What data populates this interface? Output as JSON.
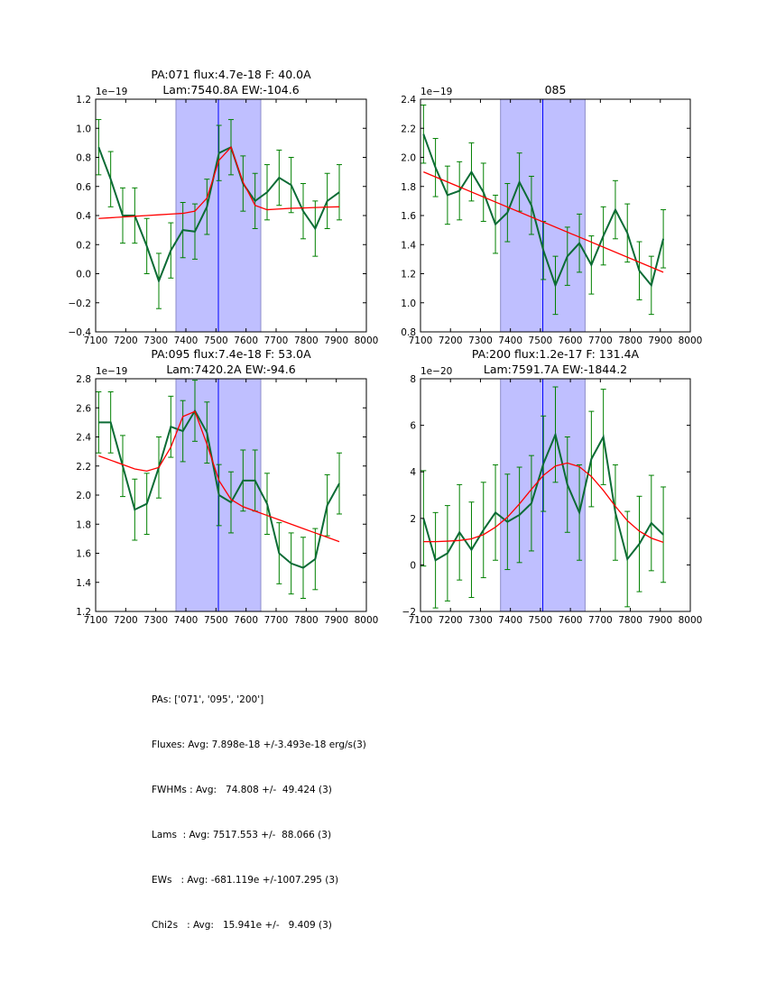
{
  "chart_data": [
    {
      "type": "line",
      "title_lines": [
        "PA:071 flux:4.7e-18 F: 40.0A",
        "Lam:7540.8A EW:-104.6"
      ],
      "offset_label": "1e−19",
      "xlim": [
        7100,
        8000
      ],
      "ylim": [
        -0.4,
        1.2
      ],
      "xticks": [
        7100,
        7200,
        7300,
        7400,
        7500,
        7600,
        7700,
        7800,
        7900,
        8000
      ],
      "yticks": [
        -0.4,
        -0.2,
        0.0,
        0.2,
        0.4,
        0.6,
        0.8,
        1.0,
        1.2
      ],
      "ytick_labels": [
        "−0.4",
        "−0.2",
        "0.0",
        "0.2",
        "0.4",
        "0.6",
        "0.8",
        "1.0",
        "1.2"
      ],
      "span": [
        7367,
        7649
      ],
      "vline": 7508,
      "x": [
        7110,
        7150,
        7190,
        7230,
        7270,
        7310,
        7350,
        7390,
        7430,
        7470,
        7510,
        7550,
        7590,
        7630,
        7670,
        7710,
        7750,
        7790,
        7830,
        7870,
        7910
      ],
      "series": [
        {
          "name": "data",
          "values": [
            0.87,
            0.65,
            0.4,
            0.4,
            0.19,
            -0.05,
            0.16,
            0.3,
            0.29,
            0.46,
            0.83,
            0.87,
            0.62,
            0.5,
            0.56,
            0.66,
            0.61,
            0.43,
            0.31,
            0.5,
            0.56
          ],
          "err": 0.19
        },
        {
          "name": "fit",
          "values": [
            0.38,
            0.385,
            0.39,
            0.395,
            0.4,
            0.405,
            0.41,
            0.415,
            0.43,
            0.52,
            0.78,
            0.87,
            0.63,
            0.47,
            0.44,
            0.445,
            0.45,
            0.452,
            0.455,
            0.458,
            0.46
          ]
        }
      ]
    },
    {
      "type": "line",
      "title_lines": [
        "085"
      ],
      "offset_label": "1e−19",
      "xlim": [
        7100,
        8000
      ],
      "ylim": [
        0.8,
        2.4
      ],
      "xticks": [
        7100,
        7200,
        7300,
        7400,
        7500,
        7600,
        7700,
        7800,
        7900,
        8000
      ],
      "yticks": [
        0.8,
        1.0,
        1.2,
        1.4,
        1.6,
        1.8,
        2.0,
        2.2,
        2.4
      ],
      "ytick_labels": [
        "0.8",
        "1.0",
        "1.2",
        "1.4",
        "1.6",
        "1.8",
        "2.0",
        "2.2",
        "2.4"
      ],
      "span": [
        7367,
        7649
      ],
      "vline": 7508,
      "x": [
        7110,
        7150,
        7190,
        7230,
        7270,
        7310,
        7350,
        7390,
        7430,
        7470,
        7510,
        7550,
        7590,
        7630,
        7670,
        7710,
        7750,
        7790,
        7830,
        7870,
        7910
      ],
      "series": [
        {
          "name": "data",
          "values": [
            2.16,
            1.93,
            1.74,
            1.77,
            1.9,
            1.76,
            1.54,
            1.62,
            1.83,
            1.67,
            1.36,
            1.12,
            1.32,
            1.41,
            1.26,
            1.46,
            1.64,
            1.48,
            1.22,
            1.12,
            1.44
          ],
          "err": 0.2
        },
        {
          "name": "fit",
          "values": [
            1.9,
            1.21
          ],
          "x": [
            7110,
            7910
          ]
        }
      ]
    },
    {
      "type": "line",
      "title_lines": [
        "PA:095 flux:7.4e-18 F: 53.0A",
        "Lam:7420.2A EW:-94.6"
      ],
      "offset_label": "1e−19",
      "xlim": [
        7100,
        8000
      ],
      "ylim": [
        1.2,
        2.8
      ],
      "xticks": [
        7100,
        7200,
        7300,
        7400,
        7500,
        7600,
        7700,
        7800,
        7900,
        8000
      ],
      "yticks": [
        1.2,
        1.4,
        1.6,
        1.8,
        2.0,
        2.2,
        2.4,
        2.6,
        2.8
      ],
      "ytick_labels": [
        "1.2",
        "1.4",
        "1.6",
        "1.8",
        "2.0",
        "2.2",
        "2.4",
        "2.6",
        "2.8"
      ],
      "span": [
        7367,
        7649
      ],
      "vline": 7508,
      "x": [
        7110,
        7150,
        7190,
        7230,
        7270,
        7310,
        7350,
        7390,
        7430,
        7470,
        7510,
        7550,
        7590,
        7630,
        7670,
        7710,
        7750,
        7790,
        7830,
        7870,
        7910
      ],
      "series": [
        {
          "name": "data",
          "values": [
            2.5,
            2.5,
            2.2,
            1.9,
            1.94,
            2.19,
            2.47,
            2.44,
            2.58,
            2.43,
            2.0,
            1.95,
            2.1,
            2.1,
            1.94,
            1.6,
            1.53,
            1.5,
            1.56,
            1.93,
            2.08
          ],
          "err": 0.21
        },
        {
          "name": "fit",
          "values": [
            2.27,
            2.24,
            2.21,
            2.18,
            2.165,
            2.19,
            2.33,
            2.54,
            2.575,
            2.35,
            2.1,
            1.97,
            1.92,
            1.89,
            1.86,
            1.83,
            1.8,
            1.77,
            1.74,
            1.71,
            1.68
          ]
        }
      ]
    },
    {
      "type": "line",
      "title_lines": [
        "PA:200 flux:1.2e-17 F: 131.4A",
        "Lam:7591.7A EW:-1844.2"
      ],
      "offset_label": "1e−20",
      "xlim": [
        7100,
        8000
      ],
      "ylim": [
        -2,
        8
      ],
      "xticks": [
        7100,
        7200,
        7300,
        7400,
        7500,
        7600,
        7700,
        7800,
        7900,
        8000
      ],
      "yticks": [
        -2,
        0,
        2,
        4,
        6,
        8
      ],
      "ytick_labels": [
        "−2",
        "0",
        "2",
        "4",
        "6",
        "8"
      ],
      "span": [
        7367,
        7649
      ],
      "vline": 7508,
      "x": [
        7110,
        7150,
        7190,
        7230,
        7270,
        7310,
        7350,
        7390,
        7430,
        7470,
        7510,
        7550,
        7590,
        7630,
        7670,
        7710,
        7750,
        7790,
        7830,
        7870,
        7910
      ],
      "series": [
        {
          "name": "data",
          "values": [
            2.0,
            0.2,
            0.5,
            1.4,
            0.65,
            1.5,
            2.25,
            1.85,
            2.15,
            2.65,
            4.35,
            5.6,
            3.45,
            2.25,
            4.55,
            5.5,
            2.25,
            0.25,
            0.9,
            1.8,
            1.3
          ],
          "err": 2.05
        },
        {
          "name": "fit",
          "values": [
            1.0,
            1.0,
            1.02,
            1.05,
            1.12,
            1.3,
            1.62,
            2.05,
            2.62,
            3.25,
            3.85,
            4.25,
            4.38,
            4.22,
            3.8,
            3.2,
            2.52,
            1.9,
            1.45,
            1.15,
            0.97
          ]
        }
      ]
    }
  ],
  "summary": {
    "lines": [
      "PAs: ['071', '095', '200']",
      "Fluxes: Avg: 7.898e-18 +/-3.493e-18 erg/s(3)",
      "FWHMs : Avg:   74.808 +/-  49.424 (3)",
      "Lams  : Avg: 7517.553 +/-  88.066 (3)",
      "EWs   : Avg: -681.119e +/-1007.295 (3)",
      "Chi2s   : Avg:   15.941e +/-   9.409 (3)"
    ]
  },
  "colors": {
    "data_line": "#0b6b35",
    "errorbar": "#008000",
    "fit_line": "#ff0000",
    "span_fill": "#bfbfff",
    "span_edge": "#8c8cc8",
    "vline": "#0000ff"
  }
}
